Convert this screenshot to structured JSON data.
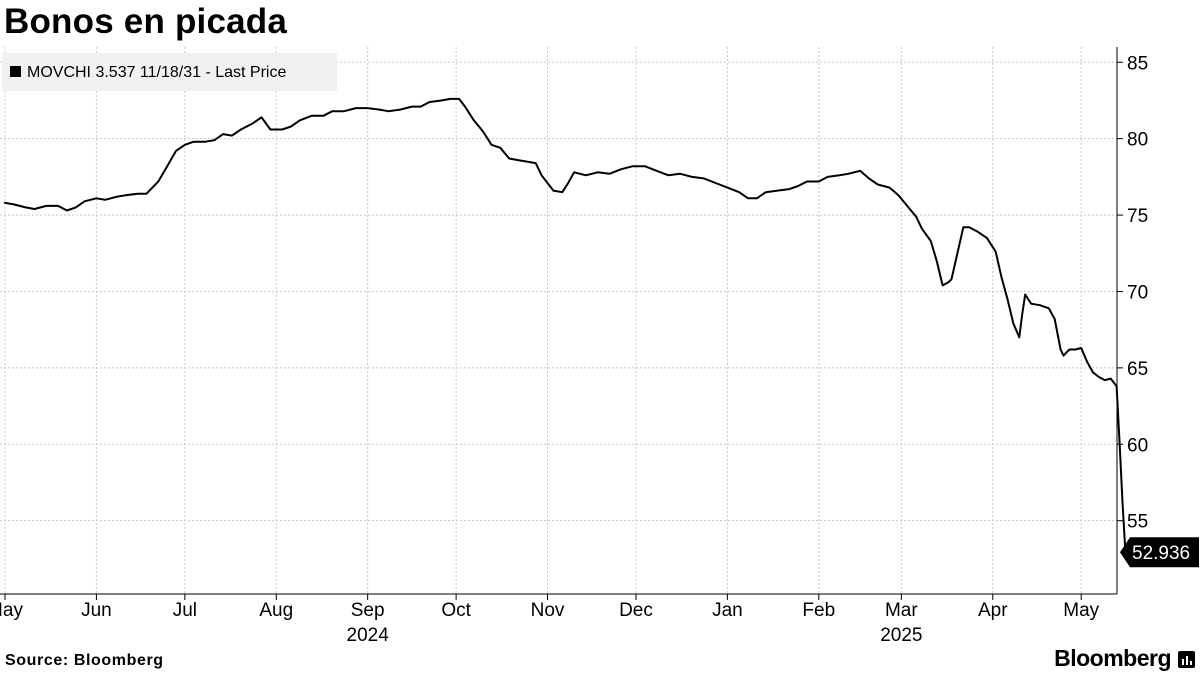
{
  "title": "Bonos en picada",
  "source": "Source:  Bloomberg",
  "brand": "Bloomberg",
  "chart_data": {
    "type": "line",
    "title": "Bonos en picada",
    "legend": {
      "placement": "top-left",
      "entries": [
        "MOVCHI 3.537 11/18/31 - Last Price"
      ]
    },
    "xlabel": "",
    "ylabel": "",
    "grid": true,
    "y_axis_side": "right",
    "ylim": [
      50.2,
      86
    ],
    "y_ticks": [
      55,
      60,
      65,
      70,
      75,
      80,
      85
    ],
    "x_range": [
      "2024-05-01",
      "2025-05-05"
    ],
    "x_ticks": [
      {
        "date": "2024-05-01",
        "label": "May"
      },
      {
        "date": "2024-06-01",
        "label": "Jun"
      },
      {
        "date": "2024-07-01",
        "label": "Jul"
      },
      {
        "date": "2024-08-01",
        "label": "Aug"
      },
      {
        "date": "2024-09-01",
        "label": "Sep"
      },
      {
        "date": "2024-10-01",
        "label": "Oct"
      },
      {
        "date": "2024-11-01",
        "label": "Nov"
      },
      {
        "date": "2024-12-01",
        "label": "Dec"
      },
      {
        "date": "2025-01-01",
        "label": "Jan"
      },
      {
        "date": "2025-02-01",
        "label": "Feb"
      },
      {
        "date": "2025-03-01",
        "label": "Mar"
      },
      {
        "date": "2025-04-01",
        "label": "Apr"
      },
      {
        "date": "2025-05-01",
        "label": "May"
      }
    ],
    "year_labels": [
      {
        "date": "2024-09-01",
        "label": "2024"
      },
      {
        "date": "2025-03-01",
        "label": "2025"
      }
    ],
    "last_value_label": "52.936",
    "series": [
      {
        "name": "MOVCHI 3.537 11/18/31 - Last Price",
        "color": "#000000",
        "points": [
          [
            "2024-05-01",
            75.8
          ],
          [
            "2024-05-04",
            75.7
          ],
          [
            "2024-05-08",
            75.5
          ],
          [
            "2024-05-11",
            75.4
          ],
          [
            "2024-05-15",
            75.6
          ],
          [
            "2024-05-19",
            75.6
          ],
          [
            "2024-05-22",
            75.3
          ],
          [
            "2024-05-25",
            75.5
          ],
          [
            "2024-05-28",
            75.9
          ],
          [
            "2024-06-01",
            76.1
          ],
          [
            "2024-06-04",
            76.0
          ],
          [
            "2024-06-08",
            76.2
          ],
          [
            "2024-06-11",
            76.3
          ],
          [
            "2024-06-15",
            76.4
          ],
          [
            "2024-06-18",
            76.4
          ],
          [
            "2024-06-22",
            77.2
          ],
          [
            "2024-06-25",
            78.2
          ],
          [
            "2024-06-28",
            79.2
          ],
          [
            "2024-07-01",
            79.6
          ],
          [
            "2024-07-04",
            79.8
          ],
          [
            "2024-07-08",
            79.8
          ],
          [
            "2024-07-11",
            79.9
          ],
          [
            "2024-07-14",
            80.3
          ],
          [
            "2024-07-17",
            80.2
          ],
          [
            "2024-07-20",
            80.6
          ],
          [
            "2024-07-24",
            81.0
          ],
          [
            "2024-07-27",
            81.4
          ],
          [
            "2024-07-30",
            80.6
          ],
          [
            "2024-08-03",
            80.6
          ],
          [
            "2024-08-06",
            80.8
          ],
          [
            "2024-08-09",
            81.2
          ],
          [
            "2024-08-13",
            81.5
          ],
          [
            "2024-08-17",
            81.5
          ],
          [
            "2024-08-20",
            81.8
          ],
          [
            "2024-08-24",
            81.8
          ],
          [
            "2024-08-28",
            82.0
          ],
          [
            "2024-09-01",
            82.0
          ],
          [
            "2024-09-05",
            81.9
          ],
          [
            "2024-09-08",
            81.8
          ],
          [
            "2024-09-12",
            81.9
          ],
          [
            "2024-09-16",
            82.1
          ],
          [
            "2024-09-19",
            82.1
          ],
          [
            "2024-09-22",
            82.4
          ],
          [
            "2024-09-26",
            82.5
          ],
          [
            "2024-09-29",
            82.6
          ],
          [
            "2024-10-02",
            82.6
          ],
          [
            "2024-10-04",
            82.1
          ],
          [
            "2024-10-07",
            81.2
          ],
          [
            "2024-10-10",
            80.5
          ],
          [
            "2024-10-13",
            79.6
          ],
          [
            "2024-10-16",
            79.4
          ],
          [
            "2024-10-19",
            78.7
          ],
          [
            "2024-10-22",
            78.6
          ],
          [
            "2024-10-25",
            78.5
          ],
          [
            "2024-10-28",
            78.4
          ],
          [
            "2024-10-30",
            77.6
          ],
          [
            "2024-11-01",
            77.1
          ],
          [
            "2024-11-03",
            76.6
          ],
          [
            "2024-11-06",
            76.5
          ],
          [
            "2024-11-08",
            77.1
          ],
          [
            "2024-11-10",
            77.8
          ],
          [
            "2024-11-14",
            77.6
          ],
          [
            "2024-11-18",
            77.8
          ],
          [
            "2024-11-22",
            77.7
          ],
          [
            "2024-11-26",
            78.0
          ],
          [
            "2024-11-30",
            78.2
          ],
          [
            "2024-12-04",
            78.2
          ],
          [
            "2024-12-08",
            77.9
          ],
          [
            "2024-12-12",
            77.6
          ],
          [
            "2024-12-16",
            77.7
          ],
          [
            "2024-12-20",
            77.5
          ],
          [
            "2024-12-24",
            77.4
          ],
          [
            "2024-12-28",
            77.1
          ],
          [
            "2025-01-01",
            76.8
          ],
          [
            "2025-01-05",
            76.5
          ],
          [
            "2025-01-08",
            76.1
          ],
          [
            "2025-01-11",
            76.1
          ],
          [
            "2025-01-14",
            76.5
          ],
          [
            "2025-01-18",
            76.6
          ],
          [
            "2025-01-22",
            76.7
          ],
          [
            "2025-01-25",
            76.9
          ],
          [
            "2025-01-28",
            77.2
          ],
          [
            "2025-02-01",
            77.2
          ],
          [
            "2025-02-04",
            77.5
          ],
          [
            "2025-02-08",
            77.6
          ],
          [
            "2025-02-11",
            77.7
          ],
          [
            "2025-02-15",
            77.9
          ],
          [
            "2025-02-18",
            77.4
          ],
          [
            "2025-02-21",
            77.0
          ],
          [
            "2025-02-25",
            76.8
          ],
          [
            "2025-02-28",
            76.3
          ],
          [
            "2025-03-03",
            75.6
          ],
          [
            "2025-03-06",
            74.9
          ],
          [
            "2025-03-08",
            74.1
          ],
          [
            "2025-03-11",
            73.3
          ],
          [
            "2025-03-13",
            72.0
          ],
          [
            "2025-03-15",
            70.4
          ],
          [
            "2025-03-17",
            70.6
          ],
          [
            "2025-03-18",
            70.8
          ],
          [
            "2025-03-20",
            72.5
          ],
          [
            "2025-03-22",
            74.2
          ],
          [
            "2025-03-24",
            74.2
          ],
          [
            "2025-03-27",
            73.9
          ],
          [
            "2025-03-30",
            73.5
          ],
          [
            "2025-04-02",
            72.6
          ],
          [
            "2025-04-04",
            70.9
          ],
          [
            "2025-04-06",
            69.5
          ],
          [
            "2025-04-08",
            67.9
          ],
          [
            "2025-04-10",
            67.0
          ],
          [
            "2025-04-11",
            68.5
          ],
          [
            "2025-04-12",
            69.8
          ],
          [
            "2025-04-14",
            69.2
          ],
          [
            "2025-04-17",
            69.1
          ],
          [
            "2025-04-20",
            68.9
          ],
          [
            "2025-04-22",
            68.2
          ],
          [
            "2025-04-24",
            66.2
          ],
          [
            "2025-04-25",
            65.8
          ],
          [
            "2025-04-27",
            66.2
          ],
          [
            "2025-04-29",
            66.2
          ],
          [
            "2025-05-01",
            66.3
          ],
          [
            "2025-05-03",
            65.4
          ],
          [
            "2025-05-05",
            64.7
          ],
          [
            "2025-05-07",
            64.4
          ],
          [
            "2025-05-09",
            64.2
          ],
          [
            "2025-05-11",
            64.3
          ],
          [
            "2025-05-13",
            63.8
          ],
          [
            "2025-05-14",
            60.2
          ],
          [
            "2025-05-15",
            56.2
          ],
          [
            "2025-05-16",
            52.936
          ]
        ]
      }
    ]
  }
}
